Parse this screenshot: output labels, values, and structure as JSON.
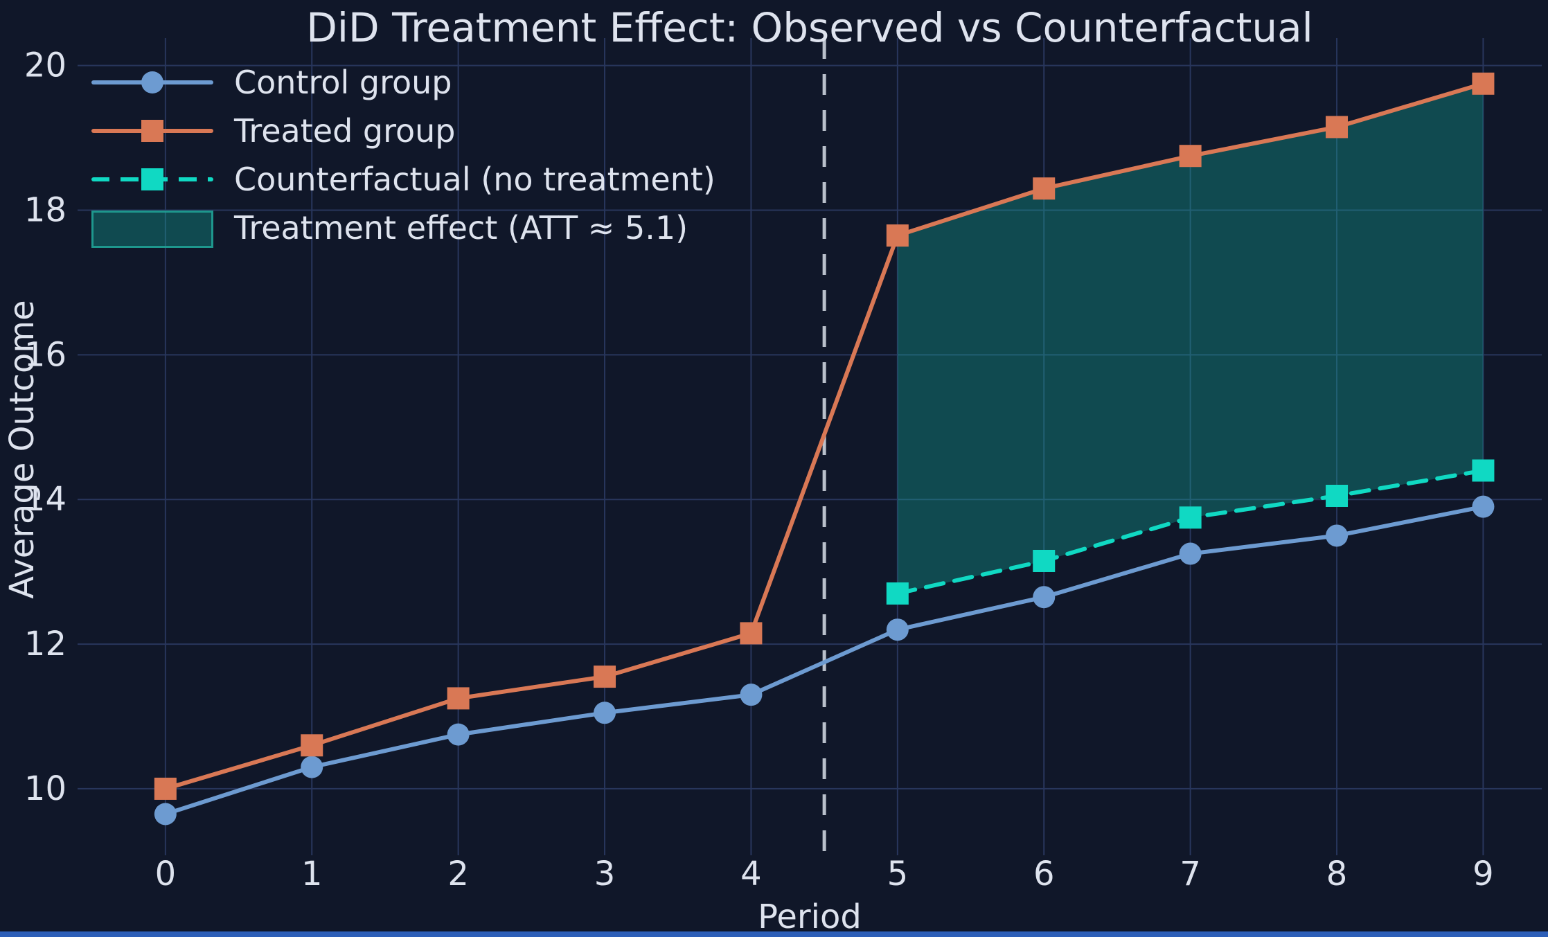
{
  "figure": {
    "title": "DiD Treatment Effect: Observed vs Counterfactual",
    "xlabel": "Period",
    "ylabel": "Average Outcome"
  },
  "legend": {
    "items": [
      {
        "label": "Control group",
        "type": "line-circle",
        "color": "#6d9bd1"
      },
      {
        "label": "Treated group",
        "type": "line-square",
        "color": "#d97855"
      },
      {
        "label": "Counterfactual (no treatment)",
        "type": "dashed-line-square",
        "color": "#10d9c3"
      },
      {
        "label": "Treatment effect (ATT ≈ 5.1)",
        "type": "patch",
        "color": "rgba(20,184,166,0.32)"
      }
    ]
  },
  "colors": {
    "background": "#101729",
    "grid": "#28365c",
    "text": "#dee3ee",
    "control": "#6d9bd1",
    "treated": "#d97855",
    "counterfactual": "#10d9c3",
    "band_fill": "rgba(20,184,166,0.32)",
    "cutoff_line": "#b9c0cb",
    "bottom_bar": "#2d5fb8"
  },
  "chart_data": {
    "type": "line",
    "title": "DiD Treatment Effect: Observed vs Counterfactual",
    "xlabel": "Period",
    "ylabel": "Average Outcome",
    "grid": true,
    "legend_position": "upper left",
    "xticks": [
      0,
      1,
      2,
      3,
      4,
      5,
      6,
      7,
      8,
      9
    ],
    "yticks": [
      10,
      12,
      14,
      16,
      18,
      20
    ],
    "xlim": [
      -0.6,
      9.4
    ],
    "ylim": [
      9.08,
      20.38
    ],
    "series": [
      {
        "name": "Control group",
        "color": "#6d9bd1",
        "marker": "circle",
        "line_style": "solid",
        "x": [
          0,
          1,
          2,
          3,
          4,
          5,
          6,
          7,
          8,
          9
        ],
        "values": [
          9.65,
          10.3,
          10.75,
          11.05,
          11.3,
          12.2,
          12.65,
          13.25,
          13.5,
          13.9
        ]
      },
      {
        "name": "Treated group",
        "color": "#d97855",
        "marker": "square",
        "line_style": "solid",
        "x": [
          0,
          1,
          2,
          3,
          4,
          5,
          6,
          7,
          8,
          9
        ],
        "values": [
          10.0,
          10.6,
          11.25,
          11.55,
          12.15,
          17.65,
          18.3,
          18.75,
          19.15,
          19.75
        ]
      },
      {
        "name": "Counterfactual (no treatment)",
        "color": "#10d9c3",
        "marker": "square",
        "line_style": "dashed",
        "x": [
          5,
          6,
          7,
          8,
          9
        ],
        "values": [
          12.7,
          13.15,
          13.75,
          14.05,
          14.4
        ]
      }
    ],
    "treatment_effect_band": {
      "label": "Treatment effect (ATT ≈ 5.1)",
      "att": 5.1,
      "x": [
        5,
        6,
        7,
        8,
        9
      ],
      "upper": [
        17.65,
        18.3,
        18.75,
        19.15,
        19.75
      ],
      "lower": [
        12.7,
        13.15,
        13.75,
        14.05,
        14.4
      ]
    },
    "treatment_cutoff_x": 4.5
  }
}
